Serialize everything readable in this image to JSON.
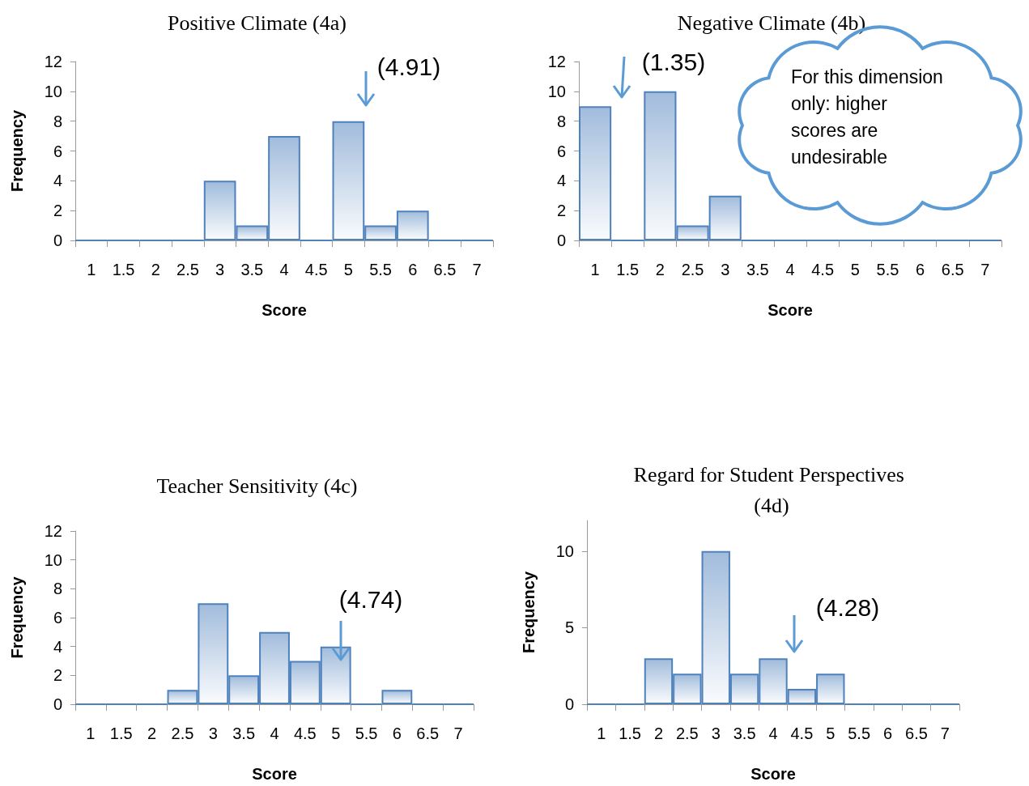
{
  "chart_data": [
    {
      "type": "bar",
      "title": "Positive Climate (4a)",
      "xlabel": "Score",
      "ylabel": "Frequency",
      "categories": [
        "1",
        "1.5",
        "2",
        "2.5",
        "3",
        "3.5",
        "4",
        "4.5",
        "5",
        "5.5",
        "6",
        "6.5",
        "7"
      ],
      "values": [
        0,
        0,
        0,
        0,
        4,
        1,
        7,
        0,
        8,
        1,
        2,
        0,
        0
      ],
      "color": "#4f81bd",
      "ylim": [
        0,
        12
      ],
      "yticks": [
        0,
        2,
        4,
        6,
        8,
        10,
        12
      ],
      "annotations": [
        "(4.91)"
      ]
    },
    {
      "type": "bar",
      "title": "Negative Climate (4b)",
      "xlabel": "Score",
      "categories": [
        "1",
        "1.5",
        "2",
        "2.5",
        "3",
        "3.5",
        "4",
        "4.5",
        "5",
        "5.5",
        "6",
        "6.5",
        "7"
      ],
      "values": [
        9,
        0,
        10,
        1,
        3,
        0,
        0,
        0,
        0,
        0,
        0,
        0,
        0
      ],
      "color": "#4f81bd",
      "ylim": [
        0,
        12
      ],
      "yticks": [
        0,
        2,
        4,
        6,
        8,
        10,
        12
      ],
      "annotations": [
        "(1.35)",
        "For this dimension only: higher scores are undesirable"
      ]
    },
    {
      "type": "bar",
      "title": "Teacher Sensitivity (4c)",
      "xlabel": "Score",
      "ylabel": "Frequency",
      "categories": [
        "1",
        "1.5",
        "2",
        "2.5",
        "3",
        "3.5",
        "4",
        "4.5",
        "5",
        "5.5",
        "6",
        "6.5",
        "7"
      ],
      "values": [
        0,
        0,
        0,
        1,
        7,
        2,
        5,
        3,
        4,
        0,
        1,
        0,
        0
      ],
      "color": "#4f81bd",
      "ylim": [
        0,
        12
      ],
      "yticks": [
        0,
        2,
        4,
        6,
        8,
        10,
        12
      ],
      "annotations": [
        "(4.74)"
      ]
    },
    {
      "type": "bar",
      "title": "Regard for Student Perspectives (4d)",
      "xlabel": "Score",
      "ylabel": "Frequency",
      "categories": [
        "1",
        "1.5",
        "2",
        "2.5",
        "3",
        "3.5",
        "4",
        "4.5",
        "5",
        "5.5",
        "6",
        "6.5",
        "7"
      ],
      "values": [
        0,
        0,
        3,
        2,
        10,
        2,
        3,
        1,
        2,
        0,
        0,
        0,
        0
      ],
      "color": "#4f81bd",
      "ylim": [
        0,
        12
      ],
      "yticks": [
        0,
        5,
        10
      ],
      "annotations": [
        "(4.28)"
      ]
    }
  ]
}
